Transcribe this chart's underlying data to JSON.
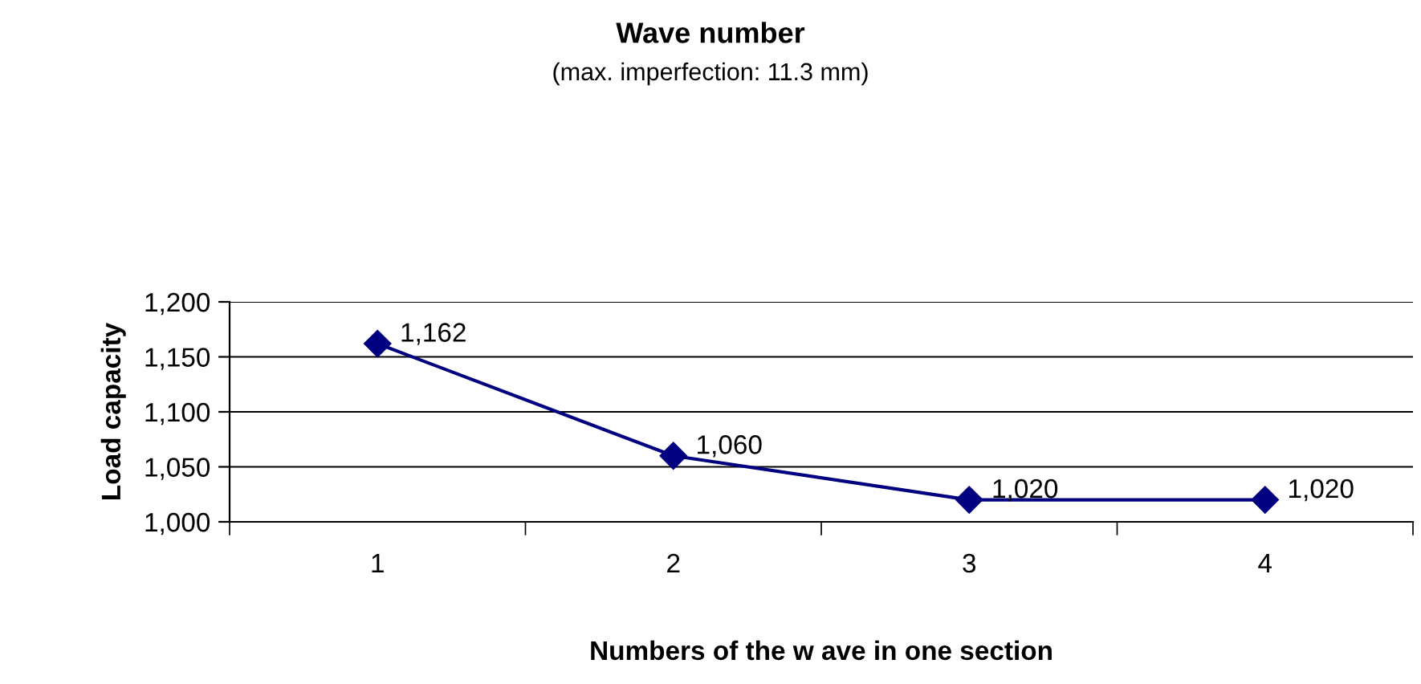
{
  "chart_data": {
    "type": "line",
    "title": "Wave number",
    "subtitle": "(max. imperfection: 11.3 mm)",
    "xlabel": "Numbers of the w ave in one section",
    "ylabel": "Load capacity",
    "categories": [
      "1",
      "2",
      "3",
      "4"
    ],
    "series": [
      {
        "color": "#000080",
        "values": [
          1162,
          1060,
          1020,
          1020
        ],
        "value_labels": [
          "1,162",
          "1,060",
          "1,020",
          "1,020"
        ]
      }
    ],
    "ylim": [
      1000,
      1200
    ],
    "yticks": [
      {
        "value": 1000,
        "label": "1,000"
      },
      {
        "value": 1050,
        "label": "1,050"
      },
      {
        "value": 1100,
        "label": "1,100"
      },
      {
        "value": 1150,
        "label": "1,150"
      },
      {
        "value": 1200,
        "label": "1,200"
      }
    ],
    "grid": "y",
    "marker": "diamond",
    "line_style": "solid"
  }
}
